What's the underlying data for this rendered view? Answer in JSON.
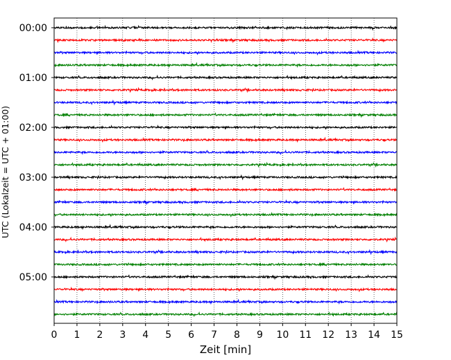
{
  "chart_data": {
    "type": "line",
    "title": "",
    "xlabel": "Zeit  [min]",
    "ylabel": "UTC (Lokalzeit = UTC + 01:00)",
    "xlim": [
      0,
      15
    ],
    "x_ticks": [
      "0",
      "1",
      "2",
      "3",
      "4",
      "5",
      "6",
      "7",
      "8",
      "9",
      "10",
      "11",
      "12",
      "13",
      "14",
      "15"
    ],
    "y_tick_labels": [
      "00:00",
      "01:00",
      "02:00",
      "03:00",
      "04:00",
      "05:00"
    ],
    "grid": "vertical dotted at each minute",
    "trace_interval_minutes": 15,
    "trace_count": 24,
    "trace_start_times": [
      "00:00",
      "00:15",
      "00:30",
      "00:45",
      "01:00",
      "01:15",
      "01:30",
      "01:45",
      "02:00",
      "02:15",
      "02:30",
      "02:45",
      "03:00",
      "03:15",
      "03:30",
      "03:45",
      "04:00",
      "04:15",
      "04:30",
      "04:45",
      "05:00",
      "05:15",
      "05:30",
      "05:45"
    ],
    "trace_colors": [
      "#000000",
      "#ff0000",
      "#0000ff",
      "#008000"
    ]
  }
}
